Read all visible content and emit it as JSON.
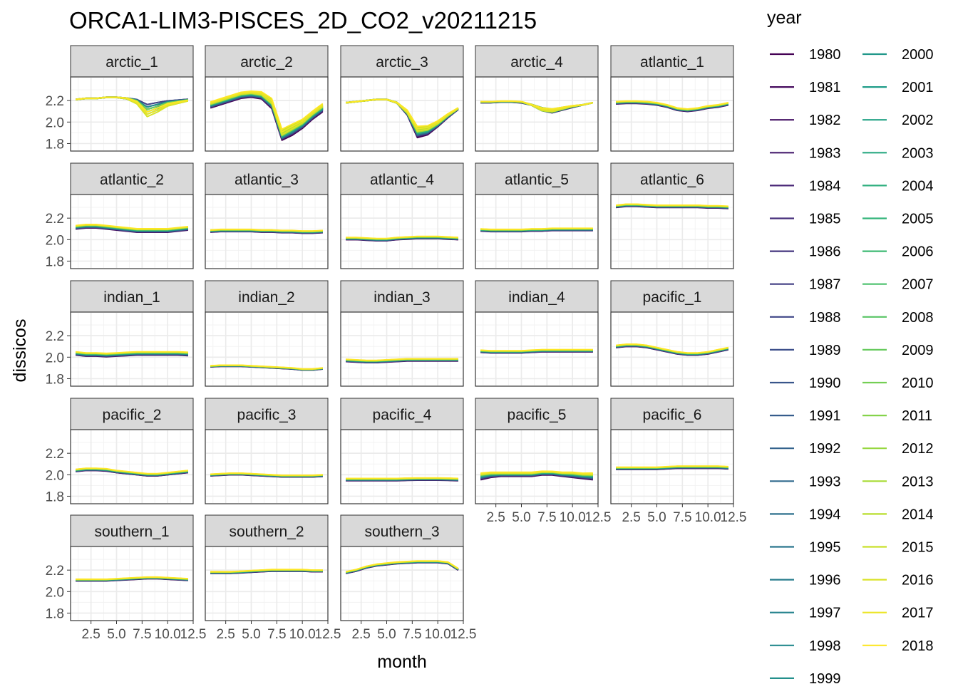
{
  "chart_data": {
    "type": "line",
    "title": "ORCA1-LIM3-PISCES_2D_CO2_v20211215",
    "xlabel": "month",
    "ylabel": "dissicos",
    "xlim": [
      0.5,
      12.5
    ],
    "ylim": [
      1.73,
      2.42
    ],
    "x_ticks": [
      "2.5",
      "5.0",
      "7.5",
      "10.0",
      "12.5"
    ],
    "y_ticks": [
      "1.8",
      "2.0",
      "2.2"
    ],
    "x_tick_values": [
      2.5,
      5.0,
      7.5,
      10.0,
      12.5
    ],
    "y_tick_values": [
      1.8,
      2.0,
      2.2
    ],
    "grid": true,
    "legend": {
      "title": "year",
      "placement": "right",
      "entries": [
        "1980",
        "1981",
        "1982",
        "1983",
        "1984",
        "1985",
        "1986",
        "1987",
        "1988",
        "1989",
        "1990",
        "1991",
        "1992",
        "1993",
        "1994",
        "1995",
        "1996",
        "1997",
        "1998",
        "1999",
        "2000",
        "2001",
        "2002",
        "2003",
        "2004",
        "2005",
        "2006",
        "2007",
        "2008",
        "2009",
        "2010",
        "2011",
        "2012",
        "2013",
        "2014",
        "2015",
        "2016",
        "2017",
        "2018"
      ]
    },
    "colormap": "viridis",
    "x": [
      1,
      2,
      3,
      4,
      5,
      6,
      7,
      8,
      9,
      10,
      11,
      12
    ],
    "facets": [
      {
        "name": "arctic_1",
        "base": [
          2.21,
          2.22,
          2.22,
          2.23,
          2.23,
          2.22,
          2.2,
          2.15,
          2.17,
          2.19,
          2.2,
          2.21
        ],
        "spread": [
          0.005,
          0.005,
          0.005,
          0.005,
          0.005,
          0.01,
          0.03,
          0.06,
          0.05,
          0.03,
          0.02,
          0.01
        ],
        "trend": [
          0.0,
          0.0,
          0.0,
          0.0,
          0.0,
          0.0,
          -0.02,
          -0.08,
          -0.06,
          -0.03,
          -0.02,
          -0.01
        ]
      },
      {
        "name": "arctic_2",
        "base": [
          2.14,
          2.17,
          2.2,
          2.23,
          2.24,
          2.23,
          2.15,
          1.86,
          1.9,
          1.96,
          2.04,
          2.11
        ],
        "spread": [
          0.02,
          0.02,
          0.02,
          0.02,
          0.02,
          0.03,
          0.05,
          0.06,
          0.05,
          0.04,
          0.03,
          0.03
        ],
        "trend": [
          0.04,
          0.04,
          0.04,
          0.04,
          0.04,
          0.04,
          0.05,
          0.05,
          0.06,
          0.05,
          0.05,
          0.05
        ]
      },
      {
        "name": "arctic_3",
        "base": [
          2.18,
          2.19,
          2.2,
          2.21,
          2.21,
          2.18,
          2.08,
          1.88,
          1.9,
          1.97,
          2.05,
          2.12
        ],
        "spread": [
          0.005,
          0.005,
          0.005,
          0.005,
          0.005,
          0.01,
          0.03,
          0.05,
          0.04,
          0.03,
          0.02,
          0.01
        ],
        "trend": [
          0.0,
          0.0,
          0.0,
          0.0,
          0.0,
          0.0,
          0.02,
          0.06,
          0.05,
          0.03,
          0.02,
          0.01
        ]
      },
      {
        "name": "arctic_4",
        "base": [
          2.18,
          2.18,
          2.185,
          2.185,
          2.18,
          2.16,
          2.12,
          2.1,
          2.12,
          2.14,
          2.16,
          2.18
        ],
        "spread": [
          0.003,
          0.003,
          0.003,
          0.003,
          0.005,
          0.01,
          0.03,
          0.03,
          0.02,
          0.01,
          0.005,
          0.003
        ],
        "trend": [
          0.01,
          0.01,
          0.01,
          0.01,
          0.01,
          0.0,
          0.0,
          0.01,
          0.01,
          0.01,
          0.0,
          0.0
        ]
      },
      {
        "name": "atlantic_1",
        "base": [
          2.17,
          2.175,
          2.175,
          2.17,
          2.16,
          2.14,
          2.11,
          2.1,
          2.11,
          2.13,
          2.14,
          2.16
        ],
        "spread": [
          0.005,
          0.005,
          0.005,
          0.005,
          0.005,
          0.005,
          0.005,
          0.005,
          0.005,
          0.005,
          0.005,
          0.005
        ],
        "trend": [
          0.02,
          0.02,
          0.02,
          0.02,
          0.02,
          0.02,
          0.02,
          0.02,
          0.02,
          0.02,
          0.02,
          0.02
        ]
      },
      {
        "name": "atlantic_2",
        "base": [
          2.1,
          2.11,
          2.11,
          2.1,
          2.09,
          2.08,
          2.07,
          2.07,
          2.07,
          2.07,
          2.08,
          2.09
        ],
        "spread": [
          0.005,
          0.005,
          0.005,
          0.005,
          0.005,
          0.005,
          0.005,
          0.005,
          0.005,
          0.005,
          0.005,
          0.005
        ],
        "trend": [
          0.03,
          0.03,
          0.03,
          0.03,
          0.03,
          0.03,
          0.03,
          0.03,
          0.03,
          0.03,
          0.03,
          0.03
        ]
      },
      {
        "name": "atlantic_3",
        "base": [
          2.07,
          2.075,
          2.075,
          2.075,
          2.075,
          2.07,
          2.07,
          2.065,
          2.065,
          2.06,
          2.06,
          2.065
        ],
        "spread": [
          0.003,
          0.003,
          0.003,
          0.003,
          0.003,
          0.003,
          0.003,
          0.003,
          0.003,
          0.003,
          0.003,
          0.003
        ],
        "trend": [
          0.02,
          0.02,
          0.02,
          0.02,
          0.02,
          0.02,
          0.02,
          0.02,
          0.02,
          0.02,
          0.02,
          0.02
        ]
      },
      {
        "name": "atlantic_4",
        "base": [
          2.0,
          2.0,
          1.995,
          1.99,
          1.99,
          2.0,
          2.005,
          2.01,
          2.01,
          2.01,
          2.005,
          2.0
        ],
        "spread": [
          0.003,
          0.003,
          0.003,
          0.003,
          0.003,
          0.003,
          0.003,
          0.003,
          0.003,
          0.003,
          0.003,
          0.003
        ],
        "trend": [
          0.02,
          0.02,
          0.02,
          0.02,
          0.02,
          0.02,
          0.02,
          0.02,
          0.02,
          0.02,
          0.02,
          0.02
        ]
      },
      {
        "name": "atlantic_5",
        "base": [
          2.08,
          2.075,
          2.075,
          2.075,
          2.075,
          2.08,
          2.08,
          2.085,
          2.085,
          2.085,
          2.085,
          2.085
        ],
        "spread": [
          0.003,
          0.003,
          0.003,
          0.003,
          0.003,
          0.003,
          0.003,
          0.003,
          0.003,
          0.003,
          0.003,
          0.003
        ],
        "trend": [
          0.02,
          0.02,
          0.02,
          0.02,
          0.02,
          0.02,
          0.02,
          0.02,
          0.02,
          0.02,
          0.02,
          0.02
        ]
      },
      {
        "name": "atlantic_6",
        "base": [
          2.3,
          2.31,
          2.31,
          2.305,
          2.3,
          2.3,
          2.3,
          2.3,
          2.3,
          2.295,
          2.295,
          2.29
        ],
        "spread": [
          0.003,
          0.003,
          0.003,
          0.003,
          0.003,
          0.003,
          0.003,
          0.003,
          0.003,
          0.003,
          0.003,
          0.003
        ],
        "trend": [
          0.02,
          0.02,
          0.02,
          0.02,
          0.02,
          0.02,
          0.02,
          0.02,
          0.02,
          0.02,
          0.02,
          0.02
        ]
      },
      {
        "name": "indian_1",
        "base": [
          2.02,
          2.01,
          2.01,
          2.005,
          2.01,
          2.015,
          2.02,
          2.02,
          2.02,
          2.02,
          2.02,
          2.015
        ],
        "spread": [
          0.003,
          0.003,
          0.003,
          0.003,
          0.003,
          0.003,
          0.003,
          0.003,
          0.003,
          0.003,
          0.003,
          0.003
        ],
        "trend": [
          0.03,
          0.03,
          0.03,
          0.03,
          0.03,
          0.03,
          0.03,
          0.03,
          0.03,
          0.03,
          0.03,
          0.03
        ]
      },
      {
        "name": "indian_2",
        "base": [
          1.91,
          1.915,
          1.915,
          1.915,
          1.91,
          1.905,
          1.9,
          1.895,
          1.89,
          1.88,
          1.88,
          1.89
        ],
        "spread": [
          0.003,
          0.003,
          0.003,
          0.003,
          0.003,
          0.003,
          0.003,
          0.003,
          0.003,
          0.003,
          0.003,
          0.003
        ],
        "trend": [
          0.01,
          0.01,
          0.01,
          0.01,
          0.01,
          0.01,
          0.01,
          0.01,
          0.01,
          0.01,
          0.01,
          0.01
        ]
      },
      {
        "name": "indian_3",
        "base": [
          1.96,
          1.955,
          1.95,
          1.95,
          1.955,
          1.96,
          1.965,
          1.965,
          1.965,
          1.965,
          1.965,
          1.965
        ],
        "spread": [
          0.003,
          0.003,
          0.003,
          0.003,
          0.003,
          0.003,
          0.003,
          0.003,
          0.003,
          0.003,
          0.003,
          0.003
        ],
        "trend": [
          0.02,
          0.02,
          0.02,
          0.02,
          0.02,
          0.02,
          0.02,
          0.02,
          0.02,
          0.02,
          0.02,
          0.02
        ]
      },
      {
        "name": "indian_4",
        "base": [
          2.045,
          2.04,
          2.04,
          2.04,
          2.04,
          2.045,
          2.05,
          2.05,
          2.05,
          2.05,
          2.05,
          2.05
        ],
        "spread": [
          0.003,
          0.003,
          0.003,
          0.003,
          0.003,
          0.003,
          0.003,
          0.003,
          0.003,
          0.003,
          0.003,
          0.003
        ],
        "trend": [
          0.02,
          0.02,
          0.02,
          0.02,
          0.02,
          0.02,
          0.02,
          0.02,
          0.02,
          0.02,
          0.02,
          0.02
        ]
      },
      {
        "name": "pacific_1",
        "base": [
          2.09,
          2.1,
          2.1,
          2.09,
          2.07,
          2.05,
          2.03,
          2.02,
          2.02,
          2.03,
          2.05,
          2.07
        ],
        "spread": [
          0.003,
          0.003,
          0.003,
          0.003,
          0.003,
          0.003,
          0.003,
          0.003,
          0.003,
          0.003,
          0.003,
          0.003
        ],
        "trend": [
          0.02,
          0.02,
          0.02,
          0.02,
          0.02,
          0.02,
          0.02,
          0.02,
          0.02,
          0.02,
          0.02,
          0.02
        ]
      },
      {
        "name": "pacific_2",
        "base": [
          2.03,
          2.04,
          2.04,
          2.035,
          2.02,
          2.01,
          2.0,
          1.99,
          1.99,
          2.0,
          2.01,
          2.02
        ],
        "spread": [
          0.003,
          0.003,
          0.003,
          0.003,
          0.003,
          0.003,
          0.003,
          0.003,
          0.003,
          0.003,
          0.003,
          0.003
        ],
        "trend": [
          0.02,
          0.02,
          0.02,
          0.02,
          0.02,
          0.02,
          0.02,
          0.02,
          0.02,
          0.02,
          0.02,
          0.02
        ]
      },
      {
        "name": "pacific_3",
        "base": [
          1.99,
          1.995,
          2.0,
          2.0,
          1.995,
          1.99,
          1.985,
          1.98,
          1.98,
          1.98,
          1.98,
          1.985
        ],
        "spread": [
          0.003,
          0.003,
          0.003,
          0.003,
          0.003,
          0.003,
          0.003,
          0.003,
          0.003,
          0.003,
          0.003,
          0.003
        ],
        "trend": [
          0.015,
          0.015,
          0.015,
          0.015,
          0.015,
          0.015,
          0.015,
          0.015,
          0.015,
          0.015,
          0.015,
          0.015
        ]
      },
      {
        "name": "pacific_4",
        "base": [
          1.945,
          1.945,
          1.945,
          1.945,
          1.945,
          1.945,
          1.948,
          1.95,
          1.95,
          1.95,
          1.948,
          1.945
        ],
        "spread": [
          0.003,
          0.003,
          0.003,
          0.003,
          0.003,
          0.003,
          0.003,
          0.003,
          0.003,
          0.003,
          0.003,
          0.003
        ],
        "trend": [
          0.02,
          0.02,
          0.02,
          0.02,
          0.02,
          0.02,
          0.02,
          0.02,
          0.02,
          0.02,
          0.02,
          0.02
        ]
      },
      {
        "name": "pacific_5",
        "base": [
          1.96,
          1.98,
          1.99,
          1.99,
          1.99,
          1.99,
          2.0,
          2.0,
          1.99,
          1.98,
          1.97,
          1.96
        ],
        "spread": [
          0.015,
          0.012,
          0.012,
          0.012,
          0.012,
          0.012,
          0.008,
          0.006,
          0.01,
          0.012,
          0.014,
          0.016
        ],
        "trend": [
          0.05,
          0.04,
          0.03,
          0.03,
          0.03,
          0.03,
          0.03,
          0.03,
          0.03,
          0.04,
          0.04,
          0.05
        ]
      },
      {
        "name": "pacific_6",
        "base": [
          2.05,
          2.05,
          2.05,
          2.05,
          2.05,
          2.055,
          2.06,
          2.06,
          2.06,
          2.06,
          2.06,
          2.055
        ],
        "spread": [
          0.003,
          0.003,
          0.003,
          0.003,
          0.003,
          0.003,
          0.003,
          0.003,
          0.003,
          0.003,
          0.003,
          0.003
        ],
        "trend": [
          0.02,
          0.02,
          0.02,
          0.02,
          0.02,
          0.02,
          0.02,
          0.02,
          0.02,
          0.02,
          0.02,
          0.02
        ]
      },
      {
        "name": "southern_1",
        "base": [
          2.1,
          2.1,
          2.1,
          2.1,
          2.105,
          2.11,
          2.115,
          2.12,
          2.12,
          2.115,
          2.11,
          2.105
        ],
        "spread": [
          0.003,
          0.003,
          0.003,
          0.003,
          0.003,
          0.003,
          0.003,
          0.003,
          0.003,
          0.003,
          0.003,
          0.003
        ],
        "trend": [
          0.015,
          0.015,
          0.015,
          0.015,
          0.015,
          0.015,
          0.015,
          0.015,
          0.015,
          0.015,
          0.015,
          0.015
        ]
      },
      {
        "name": "southern_2",
        "base": [
          2.17,
          2.17,
          2.17,
          2.175,
          2.18,
          2.185,
          2.19,
          2.19,
          2.19,
          2.19,
          2.185,
          2.185
        ],
        "spread": [
          0.003,
          0.003,
          0.003,
          0.003,
          0.003,
          0.003,
          0.003,
          0.003,
          0.003,
          0.003,
          0.003,
          0.003
        ],
        "trend": [
          0.015,
          0.015,
          0.015,
          0.015,
          0.015,
          0.015,
          0.015,
          0.015,
          0.015,
          0.015,
          0.015,
          0.015
        ]
      },
      {
        "name": "southern_3",
        "base": [
          2.17,
          2.19,
          2.22,
          2.24,
          2.25,
          2.26,
          2.265,
          2.27,
          2.27,
          2.27,
          2.26,
          2.2
        ],
        "spread": [
          0.003,
          0.003,
          0.003,
          0.003,
          0.003,
          0.003,
          0.003,
          0.003,
          0.003,
          0.003,
          0.003,
          0.003
        ],
        "trend": [
          0.015,
          0.015,
          0.015,
          0.015,
          0.015,
          0.015,
          0.015,
          0.015,
          0.015,
          0.015,
          0.015,
          0.015
        ]
      }
    ]
  }
}
